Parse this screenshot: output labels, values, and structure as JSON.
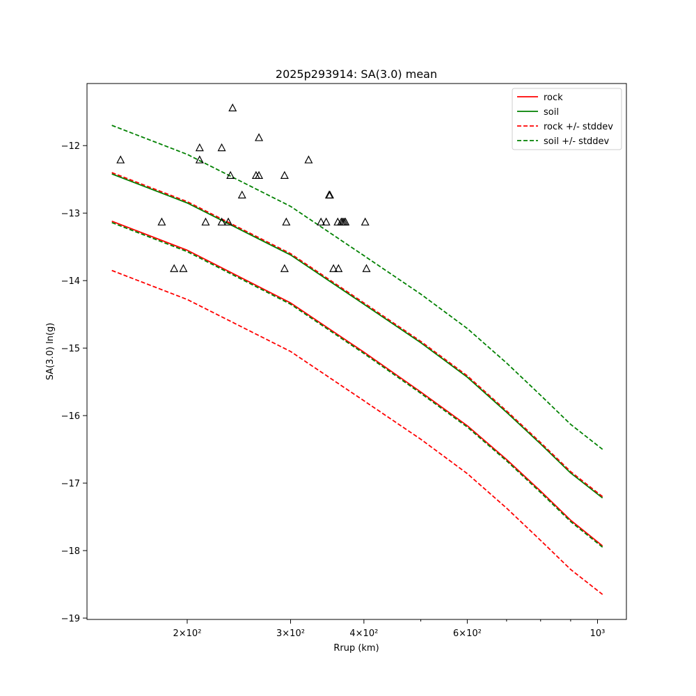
{
  "chart_data": {
    "type": "line",
    "title": "2025p293914: SA(3.0) mean",
    "xlabel": "Rrup (km)",
    "ylabel": "SA(3.0) ln(g)",
    "xscale": "log",
    "xlim": [
      135,
      1120
    ],
    "ylim": [
      -19.02,
      -11.08
    ],
    "grid": false,
    "legend_position": "top-right",
    "x_ticks": [
      {
        "value": 200,
        "label": "2×10²"
      },
      {
        "value": 300,
        "label": "3×10²"
      },
      {
        "value": 400,
        "label": "4×10²"
      },
      {
        "value": 600,
        "label": "6×10²"
      },
      {
        "value": 1000,
        "label": "10³"
      }
    ],
    "x_minor_ticks": [
      500,
      700,
      800,
      900
    ],
    "y_ticks": [
      {
        "value": -12,
        "label": "−12"
      },
      {
        "value": -13,
        "label": "−13"
      },
      {
        "value": -14,
        "label": "−14"
      },
      {
        "value": -15,
        "label": "−15"
      },
      {
        "value": -16,
        "label": "−16"
      },
      {
        "value": -17,
        "label": "−17"
      },
      {
        "value": -18,
        "label": "−18"
      },
      {
        "value": -19,
        "label": "−19"
      }
    ],
    "series": [
      {
        "name": "rock",
        "color": "#ff0000",
        "style": "solid",
        "x": [
          148.8,
          200,
          300,
          400,
          500,
          600,
          700,
          800,
          900,
          1020
        ],
        "y": [
          -13.12,
          -13.55,
          -14.33,
          -15.06,
          -15.65,
          -16.15,
          -16.65,
          -17.12,
          -17.55,
          -17.93
        ]
      },
      {
        "name": "soil",
        "color": "#008000",
        "style": "solid",
        "x": [
          148.8,
          200,
          300,
          400,
          500,
          600,
          700,
          800,
          900,
          1020
        ],
        "y": [
          -12.42,
          -12.85,
          -13.62,
          -14.35,
          -14.92,
          -15.43,
          -15.95,
          -16.42,
          -16.85,
          -17.22
        ]
      },
      {
        "name": "rock +/- stddev",
        "color": "#ff0000",
        "style": "dashed",
        "x": [
          148.8,
          200,
          300,
          400,
          500,
          600,
          700,
          800,
          900,
          1020
        ],
        "y": [
          -12.4,
          -12.83,
          -13.6,
          -14.33,
          -14.9,
          -15.41,
          -15.93,
          -16.4,
          -16.83,
          -17.2
        ]
      },
      {
        "name": "",
        "color": "#ff0000",
        "style": "dashed",
        "x": [
          148.8,
          200,
          300,
          400,
          500,
          600,
          700,
          800,
          900,
          1020
        ],
        "y": [
          -13.85,
          -14.28,
          -15.05,
          -15.78,
          -16.35,
          -16.86,
          -17.37,
          -17.85,
          -18.28,
          -18.65
        ]
      },
      {
        "name": "soil +/- stddev",
        "color": "#008000",
        "style": "dashed",
        "x": [
          148.8,
          200,
          300,
          400,
          500,
          600,
          700,
          800,
          900,
          1020
        ],
        "y": [
          -11.7,
          -12.13,
          -12.9,
          -13.63,
          -14.2,
          -14.71,
          -15.22,
          -15.7,
          -16.13,
          -16.5
        ]
      },
      {
        "name": "",
        "color": "#008000",
        "style": "dashed",
        "x": [
          148.8,
          200,
          300,
          400,
          500,
          600,
          700,
          800,
          900,
          1020
        ],
        "y": [
          -13.14,
          -13.57,
          -14.35,
          -15.08,
          -15.67,
          -16.17,
          -16.67,
          -17.14,
          -17.57,
          -17.95
        ]
      }
    ],
    "observations": {
      "marker": "triangle",
      "color": "#000000",
      "points": [
        {
          "x": 154,
          "y": -12.21
        },
        {
          "x": 181,
          "y": -13.13
        },
        {
          "x": 190,
          "y": -13.82
        },
        {
          "x": 197,
          "y": -13.82
        },
        {
          "x": 210,
          "y": -12.03
        },
        {
          "x": 210,
          "y": -12.21
        },
        {
          "x": 215,
          "y": -13.13
        },
        {
          "x": 229,
          "y": -12.03
        },
        {
          "x": 229,
          "y": -13.13
        },
        {
          "x": 235,
          "y": -13.13
        },
        {
          "x": 237,
          "y": -12.44
        },
        {
          "x": 239,
          "y": -11.44
        },
        {
          "x": 248,
          "y": -12.73
        },
        {
          "x": 262,
          "y": -12.44
        },
        {
          "x": 265,
          "y": -12.44
        },
        {
          "x": 265,
          "y": -11.88
        },
        {
          "x": 293,
          "y": -12.44
        },
        {
          "x": 293,
          "y": -13.82
        },
        {
          "x": 295,
          "y": -13.13
        },
        {
          "x": 322,
          "y": -12.21
        },
        {
          "x": 338,
          "y": -13.13
        },
        {
          "x": 345,
          "y": -13.13
        },
        {
          "x": 349,
          "y": -12.73
        },
        {
          "x": 350,
          "y": -12.73
        },
        {
          "x": 355,
          "y": -13.82
        },
        {
          "x": 361,
          "y": -13.13
        },
        {
          "x": 362,
          "y": -13.82
        },
        {
          "x": 366,
          "y": -13.13
        },
        {
          "x": 368,
          "y": -13.13
        },
        {
          "x": 370,
          "y": -13.13
        },
        {
          "x": 372,
          "y": -13.13
        },
        {
          "x": 402,
          "y": -13.13
        },
        {
          "x": 404,
          "y": -13.82
        }
      ]
    }
  }
}
